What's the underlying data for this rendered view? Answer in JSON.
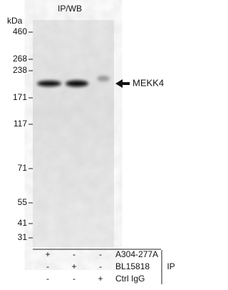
{
  "title": "IP/WB",
  "unit": "kDa",
  "markers": [
    "460",
    "268",
    "238",
    "171",
    "117",
    "71",
    "55",
    "41",
    "31"
  ],
  "target": "MEKK4",
  "ip_label": "IP",
  "rows": [
    {
      "label": "A304-277A",
      "lanes": [
        "+",
        "-",
        "-"
      ]
    },
    {
      "label": "BL15818",
      "lanes": [
        "-",
        "+",
        "-"
      ]
    },
    {
      "label": "Ctrl IgG",
      "lanes": [
        "-",
        "-",
        "+"
      ]
    }
  ]
}
